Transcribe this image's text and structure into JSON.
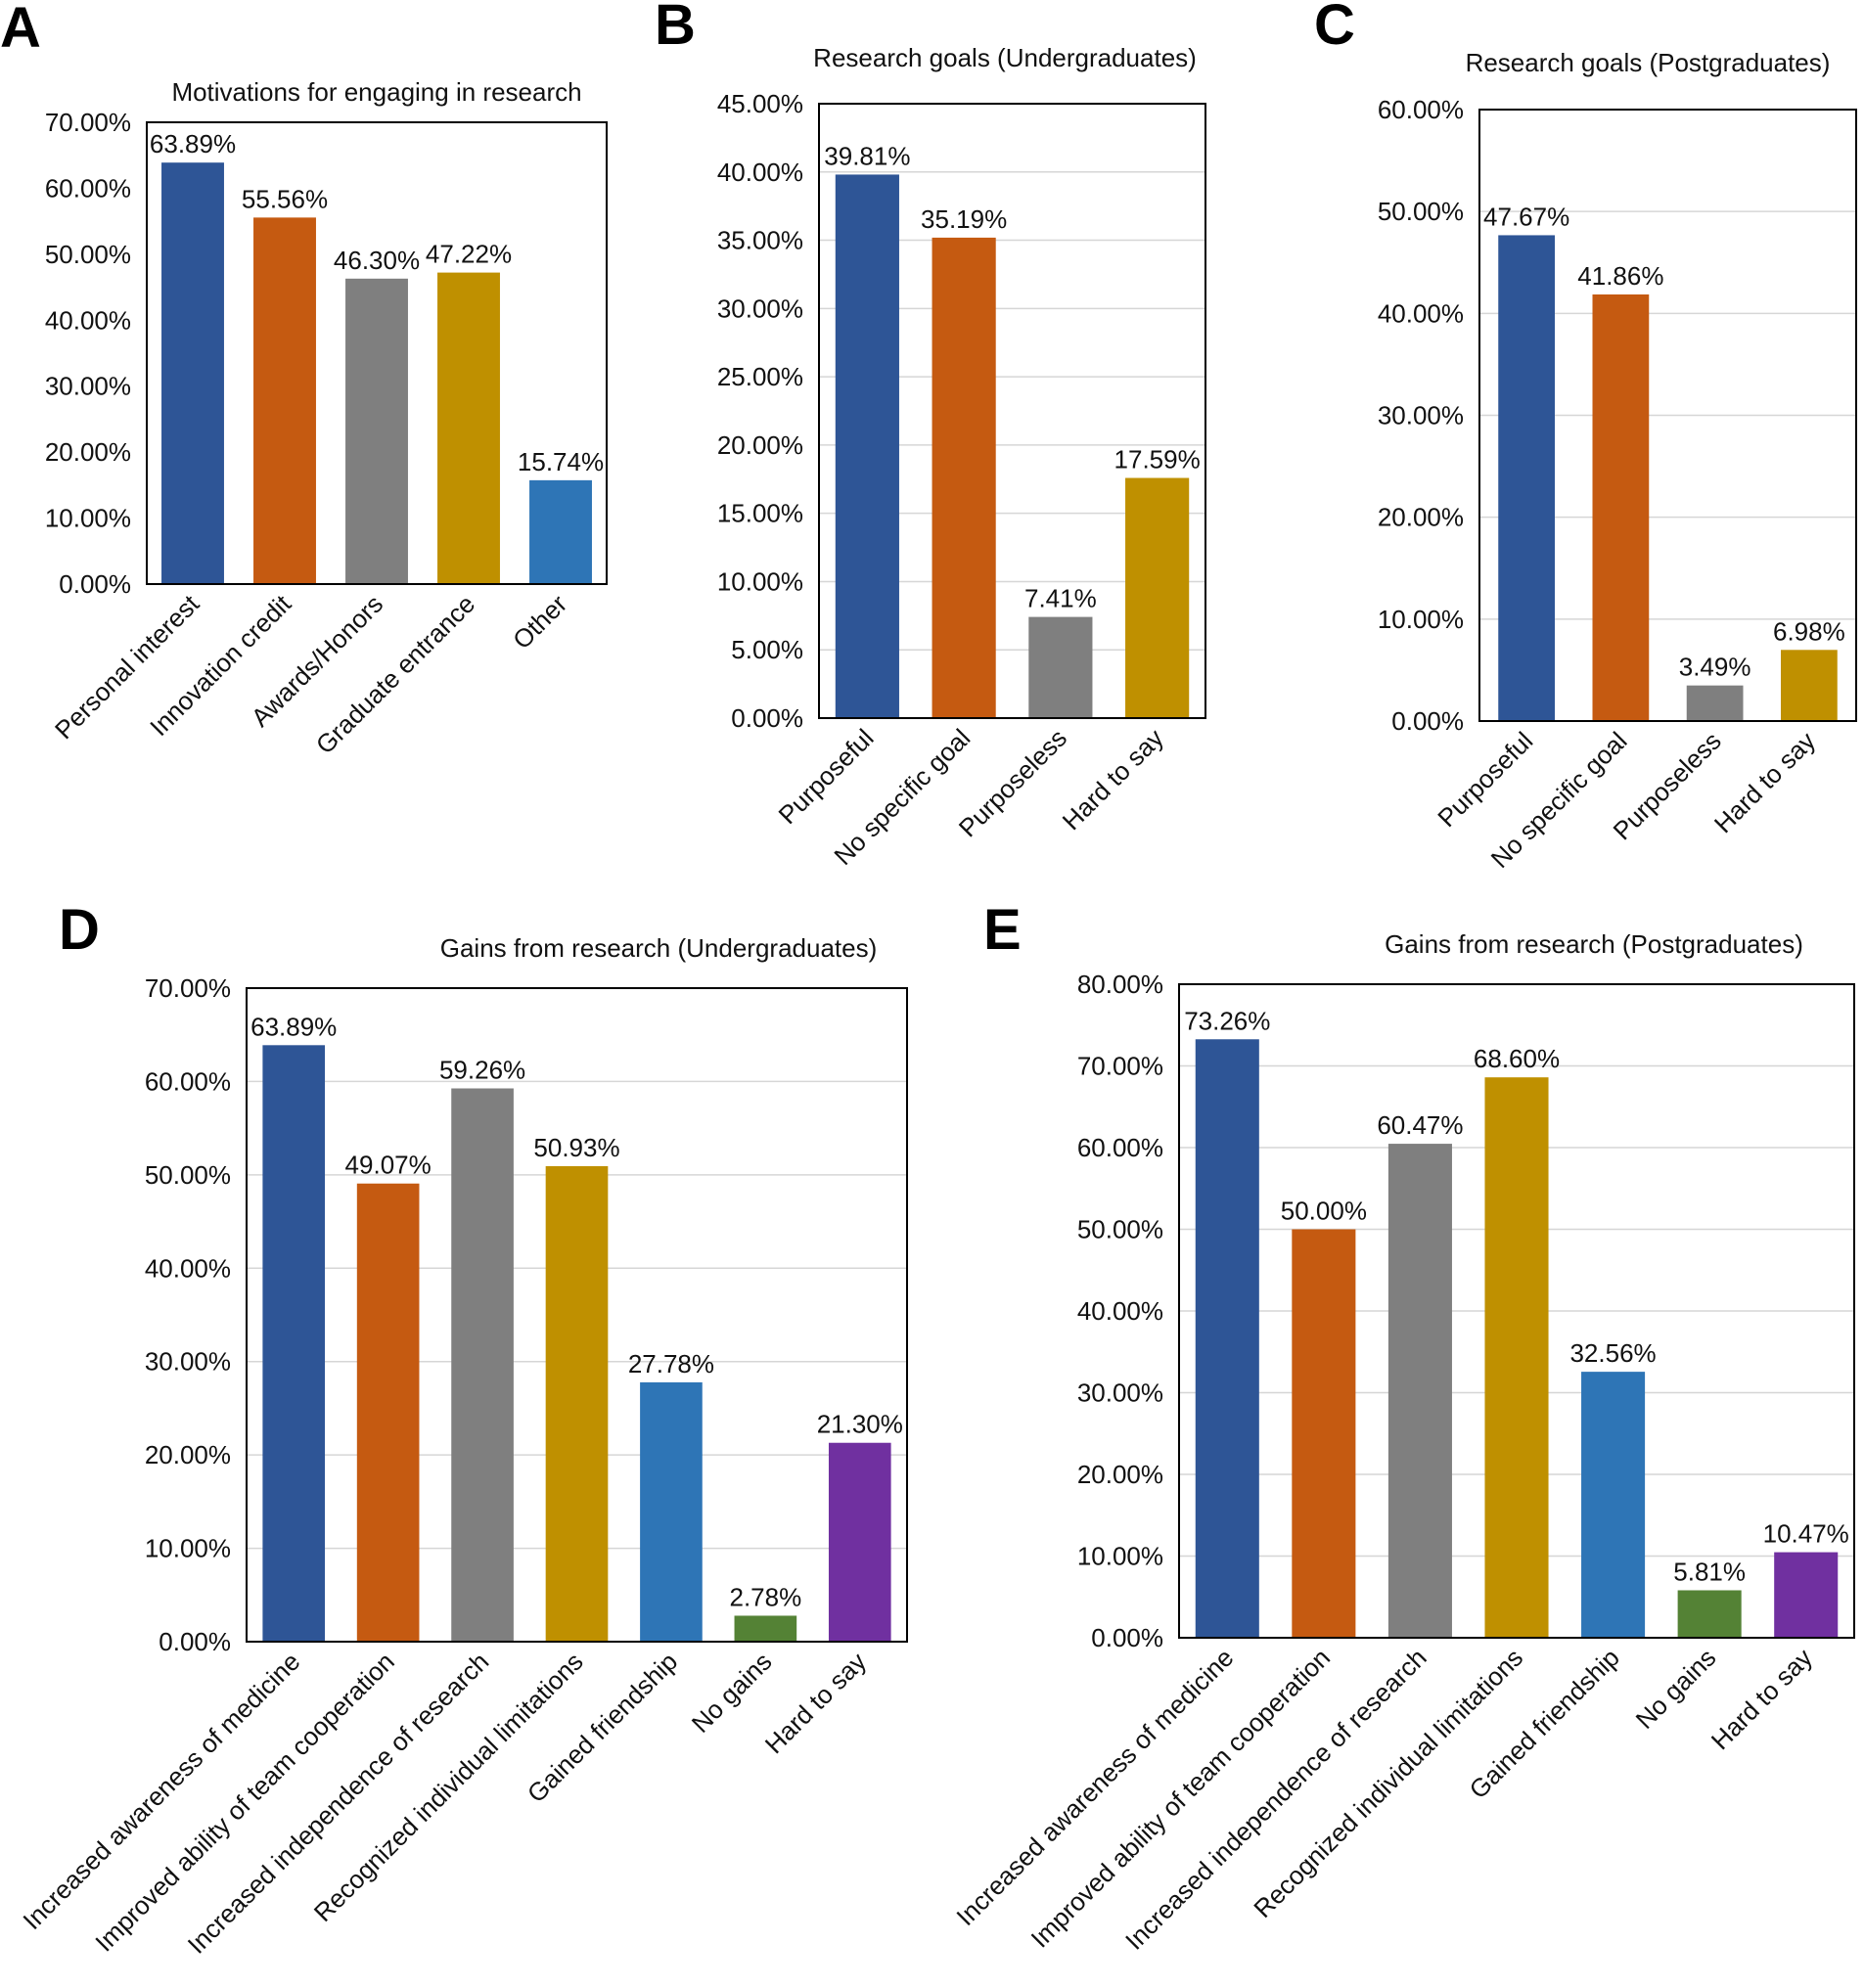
{
  "colors": {
    "blue_dark": "#2E5596",
    "orange": "#C55A11",
    "gray": "#7F7F7F",
    "gold": "#BF9000",
    "blue": "#2E75B6",
    "green": "#548235",
    "purple": "#7030A0"
  },
  "chart_data": [
    {
      "panel": "A",
      "type": "bar",
      "title": "Motivations for engaging in research",
      "categories": [
        "Personal interest",
        "Innovation credit",
        "Awards/Honors",
        "Graduate entrance",
        "Other"
      ],
      "values": [
        63.89,
        55.56,
        46.3,
        47.22,
        15.74
      ],
      "value_labels": [
        "63.89%",
        "55.56%",
        "46.30%",
        "47.22%",
        "15.74%"
      ],
      "bar_colors": [
        "#2E5596",
        "#C55A11",
        "#7F7F7F",
        "#BF9000",
        "#2E75B6"
      ],
      "ylim": [
        0,
        70
      ],
      "yticks": [
        "0.00%",
        "10.00%",
        "20.00%",
        "30.00%",
        "40.00%",
        "50.00%",
        "60.00%",
        "70.00%"
      ],
      "grid": false,
      "xlabel": "",
      "ylabel": ""
    },
    {
      "panel": "B",
      "type": "bar",
      "title": "Research goals (Undergraduates)",
      "categories": [
        "Purposeful",
        "No specific goal",
        "Purposeless",
        "Hard to say"
      ],
      "values": [
        39.81,
        35.19,
        7.41,
        17.59
      ],
      "value_labels": [
        "39.81%",
        "35.19%",
        "7.41%",
        "17.59%"
      ],
      "bar_colors": [
        "#2E5596",
        "#C55A11",
        "#7F7F7F",
        "#BF9000"
      ],
      "ylim": [
        0,
        45
      ],
      "yticks": [
        "0.00%",
        "5.00%",
        "10.00%",
        "15.00%",
        "20.00%",
        "25.00%",
        "30.00%",
        "35.00%",
        "40.00%",
        "45.00%"
      ],
      "grid": true,
      "xlabel": "",
      "ylabel": ""
    },
    {
      "panel": "C",
      "type": "bar",
      "title": "Research goals (Postgraduates)",
      "categories": [
        "Purposeful",
        "No specific goal",
        "Purposeless",
        "Hard to say"
      ],
      "values": [
        47.67,
        41.86,
        3.49,
        6.98
      ],
      "value_labels": [
        "47.67%",
        "41.86%",
        "3.49%",
        "6.98%"
      ],
      "bar_colors": [
        "#2E5596",
        "#C55A11",
        "#7F7F7F",
        "#BF9000"
      ],
      "ylim": [
        0,
        60
      ],
      "yticks": [
        "0.00%",
        "10.00%",
        "20.00%",
        "30.00%",
        "40.00%",
        "50.00%",
        "60.00%"
      ],
      "grid": true,
      "xlabel": "",
      "ylabel": ""
    },
    {
      "panel": "D",
      "type": "bar",
      "title": "Gains from research (Undergraduates)",
      "categories": [
        "Increased awareness of medicine",
        "Improved ability of team cooperation",
        "Increased independence of research",
        "Recognized individual limitations",
        "Gained friendship",
        "No gains",
        "Hard to say"
      ],
      "values": [
        63.89,
        49.07,
        59.26,
        50.93,
        27.78,
        2.78,
        21.3
      ],
      "value_labels": [
        "63.89%",
        "49.07%",
        "59.26%",
        "50.93%",
        "27.78%",
        "2.78%",
        "21.30%"
      ],
      "bar_colors": [
        "#2E5596",
        "#C55A11",
        "#7F7F7F",
        "#BF9000",
        "#2E75B6",
        "#548235",
        "#7030A0"
      ],
      "ylim": [
        0,
        70
      ],
      "yticks": [
        "0.00%",
        "10.00%",
        "20.00%",
        "30.00%",
        "40.00%",
        "50.00%",
        "60.00%",
        "70.00%"
      ],
      "grid": true,
      "xlabel": "",
      "ylabel": ""
    },
    {
      "panel": "E",
      "type": "bar",
      "title": "Gains from research (Postgraduates)",
      "categories": [
        "Increased awareness of medicine",
        "Improved ability of team cooperation",
        "Increased independence of research",
        "Recognized individual limitations",
        "Gained friendship",
        "No gains",
        "Hard to say"
      ],
      "values": [
        73.26,
        50.0,
        60.47,
        68.6,
        32.56,
        5.81,
        10.47
      ],
      "value_labels": [
        "73.26%",
        "50.00%",
        "60.47%",
        "68.60%",
        "32.56%",
        "5.81%",
        "10.47%"
      ],
      "bar_colors": [
        "#2E5596",
        "#C55A11",
        "#7F7F7F",
        "#BF9000",
        "#2E75B6",
        "#548235",
        "#7030A0"
      ],
      "ylim": [
        0,
        80
      ],
      "yticks": [
        "0.00%",
        "10.00%",
        "20.00%",
        "30.00%",
        "40.00%",
        "50.00%",
        "60.00%",
        "70.00%",
        "80.00%"
      ],
      "grid": true,
      "xlabel": "",
      "ylabel": ""
    }
  ]
}
